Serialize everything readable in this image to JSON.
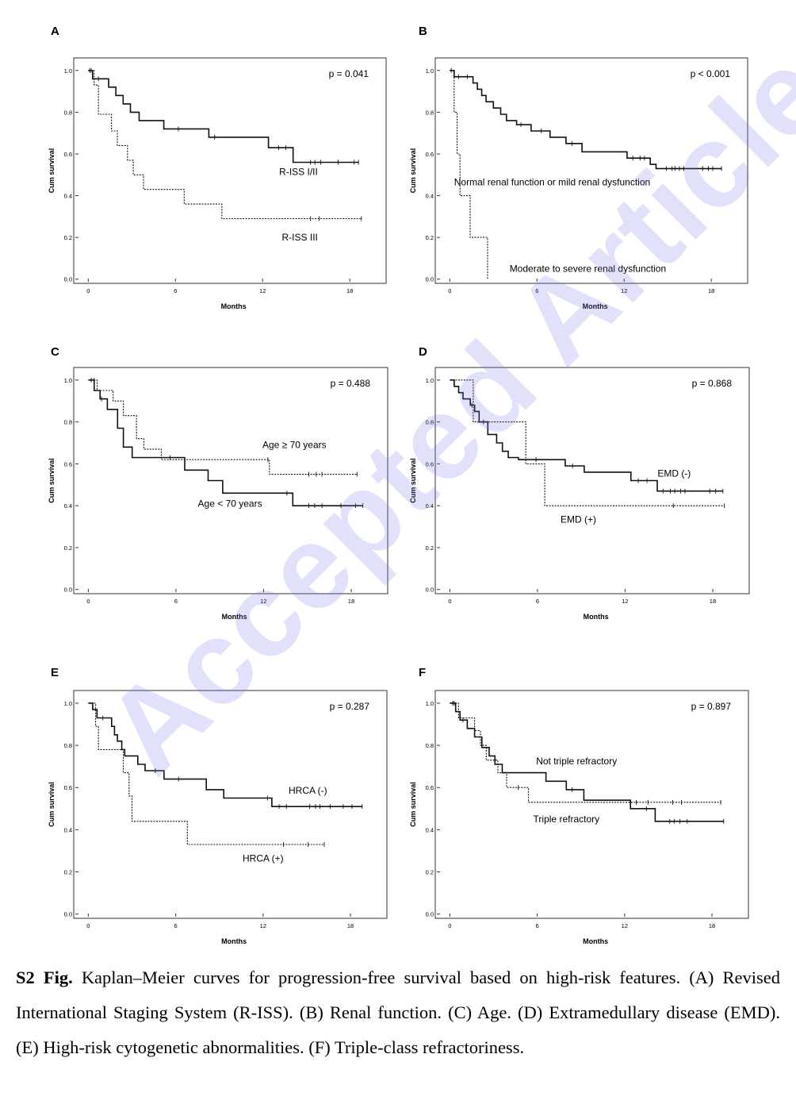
{
  "watermark": "Accepted Article",
  "caption": {
    "label": "S2 Fig.",
    "text": "Kaplan–Meier curves for progression-free survival based on high-risk features. (A) Revised International Staging System (R-ISS). (B) Renal function. (C) Age. (D) Extramedullary disease (EMD). (E) High-risk cytogenetic abnormalities. (F) Triple-class refractoriness."
  },
  "chart_data": [
    {
      "panel": "A",
      "type": "line",
      "xlabel": "Months",
      "ylabel": "Cum survival",
      "xlim": [
        -1,
        20.5
      ],
      "ylim": [
        -0.02,
        1.06
      ],
      "xticks": [
        0,
        6,
        12,
        18
      ],
      "yticks": [
        "0.0",
        "0.2",
        "0.4",
        "0.6",
        "0.8",
        "1.0"
      ],
      "pvalue": "p = 0.041",
      "series": [
        {
          "name": "R-ISS I/II",
          "style": "solid",
          "steps": [
            [
              0,
              1.0
            ],
            [
              0.3,
              0.96
            ],
            [
              1.4,
              0.92
            ],
            [
              1.9,
              0.88
            ],
            [
              2.4,
              0.84
            ],
            [
              2.9,
              0.8
            ],
            [
              3.5,
              0.76
            ],
            [
              5.2,
              0.72
            ],
            [
              8.3,
              0.68
            ],
            [
              12.4,
              0.63
            ],
            [
              14.1,
              0.56
            ],
            [
              18.6,
              0.56
            ]
          ],
          "censor": [
            0.1,
            0.7,
            6.2,
            8.7,
            13.1,
            13.6,
            15.3,
            15.6,
            16.0,
            17.2,
            18.3,
            18.6
          ]
        },
        {
          "name": "R-ISS III",
          "style": "dashed",
          "steps": [
            [
              0,
              1.0
            ],
            [
              0.4,
              0.93
            ],
            [
              0.7,
              0.79
            ],
            [
              1.6,
              0.71
            ],
            [
              2.0,
              0.64
            ],
            [
              2.7,
              0.57
            ],
            [
              3.1,
              0.5
            ],
            [
              3.8,
              0.43
            ],
            [
              6.6,
              0.36
            ],
            [
              9.2,
              0.29
            ],
            [
              18.8,
              0.29
            ]
          ],
          "censor": [
            0.2,
            15.3,
            15.9,
            18.8
          ]
        }
      ],
      "labels": [
        {
          "text": "R-ISS I/II",
          "x": 15.8,
          "y": 0.515
        },
        {
          "text": "R-ISS III",
          "x": 15.8,
          "y": 0.2
        }
      ]
    },
    {
      "panel": "B",
      "type": "line",
      "xlabel": "Months",
      "ylabel": "Cum survival",
      "xlim": [
        -1,
        20.5
      ],
      "ylim": [
        -0.02,
        1.06
      ],
      "xticks": [
        0,
        6,
        12,
        18
      ],
      "yticks": [
        "0.0",
        "0.2",
        "0.4",
        "0.6",
        "0.8",
        "1.0"
      ],
      "pvalue": "p < 0.001",
      "series": [
        {
          "name": "Normal renal function or mild renal dysfunction",
          "style": "solid",
          "steps": [
            [
              0,
              1.0
            ],
            [
              0.3,
              0.97
            ],
            [
              1.6,
              0.94
            ],
            [
              1.9,
              0.91
            ],
            [
              2.2,
              0.88
            ],
            [
              2.5,
              0.85
            ],
            [
              3.0,
              0.82
            ],
            [
              3.5,
              0.79
            ],
            [
              3.9,
              0.76
            ],
            [
              4.6,
              0.74
            ],
            [
              5.6,
              0.71
            ],
            [
              6.9,
              0.68
            ],
            [
              8.0,
              0.65
            ],
            [
              9.1,
              0.61
            ],
            [
              12.2,
              0.58
            ],
            [
              13.8,
              0.55
            ],
            [
              14.2,
              0.53
            ],
            [
              18.7,
              0.53
            ]
          ],
          "censor": [
            0.1,
            0.6,
            1.2,
            4.9,
            6.3,
            8.4,
            12.6,
            13.1,
            13.4,
            14.9,
            15.3,
            15.5,
            15.8,
            16.1,
            17.4,
            17.8,
            18.1,
            18.7
          ]
        },
        {
          "name": "Moderate to severe renal dysfunction",
          "style": "dashed",
          "steps": [
            [
              0,
              1.0
            ],
            [
              0.3,
              0.8
            ],
            [
              0.5,
              0.6
            ],
            [
              0.7,
              0.4
            ],
            [
              1.4,
              0.2
            ],
            [
              2.6,
              0.0
            ]
          ],
          "censor": []
        }
      ],
      "labels": [
        {
          "text": "Normal renal function or mild renal dysfunction",
          "x": 13.8,
          "y": 0.465
        },
        {
          "text": "Moderate to severe renal dysfunction",
          "x": 9.5,
          "y": 0.05
        }
      ]
    },
    {
      "panel": "C",
      "type": "line",
      "xlabel": "Months",
      "ylabel": "Cum survival",
      "xlim": [
        -1,
        20.5
      ],
      "ylim": [
        -0.02,
        1.06
      ],
      "xticks": [
        0,
        6,
        12,
        18
      ],
      "yticks": [
        "0.0",
        "0.2",
        "0.4",
        "0.6",
        "0.8",
        "1.0"
      ],
      "pvalue": "p = 0.488",
      "series": [
        {
          "name": "Age < 70 years",
          "style": "solid",
          "steps": [
            [
              0,
              1.0
            ],
            [
              0.4,
              0.95
            ],
            [
              0.8,
              0.91
            ],
            [
              1.3,
              0.86
            ],
            [
              2.0,
              0.77
            ],
            [
              2.4,
              0.68
            ],
            [
              3.0,
              0.63
            ],
            [
              6.6,
              0.57
            ],
            [
              8.2,
              0.52
            ],
            [
              9.2,
              0.46
            ],
            [
              14.0,
              0.4
            ],
            [
              18.8,
              0.4
            ]
          ],
          "censor": [
            0.2,
            0.9,
            5.6,
            13.6,
            15.1,
            15.5,
            16.0,
            17.3,
            18.3,
            18.8
          ]
        },
        {
          "name": "Age ≥ 70 years",
          "style": "dashed",
          "steps": [
            [
              0,
              1.0
            ],
            [
              0.6,
              0.95
            ],
            [
              1.7,
              0.9
            ],
            [
              2.4,
              0.83
            ],
            [
              3.3,
              0.72
            ],
            [
              3.8,
              0.67
            ],
            [
              5.0,
              0.62
            ],
            [
              12.4,
              0.55
            ],
            [
              18.4,
              0.55
            ]
          ],
          "censor": [
            0.4,
            12.3,
            15.1,
            15.6,
            16.0,
            18.4
          ]
        }
      ],
      "labels": [
        {
          "text": "Age ≥ 70 years",
          "x": 16.3,
          "y": 0.69
        },
        {
          "text": "Age < 70 years",
          "x": 9.7,
          "y": 0.41
        }
      ]
    },
    {
      "panel": "D",
      "type": "line",
      "xlabel": "Months",
      "ylabel": "Cum survival",
      "xlim": [
        -1,
        20.5
      ],
      "ylim": [
        -0.02,
        1.06
      ],
      "xticks": [
        0,
        6,
        12,
        18
      ],
      "yticks": [
        "0.0",
        "0.2",
        "0.4",
        "0.6",
        "0.8",
        "1.0"
      ],
      "pvalue": "p = 0.868",
      "series": [
        {
          "name": "EMD (-)",
          "style": "solid",
          "steps": [
            [
              0,
              1.0
            ],
            [
              0.3,
              0.97
            ],
            [
              0.6,
              0.94
            ],
            [
              0.9,
              0.91
            ],
            [
              1.4,
              0.88
            ],
            [
              1.7,
              0.85
            ],
            [
              2.0,
              0.8
            ],
            [
              2.6,
              0.74
            ],
            [
              3.2,
              0.7
            ],
            [
              3.6,
              0.66
            ],
            [
              4.0,
              0.63
            ],
            [
              4.7,
              0.62
            ],
            [
              7.9,
              0.59
            ],
            [
              9.2,
              0.56
            ],
            [
              12.4,
              0.52
            ],
            [
              14.2,
              0.47
            ],
            [
              18.7,
              0.47
            ]
          ],
          "censor": [
            1.5,
            2.3,
            5.9,
            8.4,
            12.9,
            13.5,
            14.6,
            15.1,
            15.4,
            15.8,
            16.1,
            17.8,
            18.2,
            18.7
          ]
        },
        {
          "name": "EMD (+)",
          "style": "dashed",
          "steps": [
            [
              0,
              1.0
            ],
            [
              1.6,
              0.8
            ],
            [
              5.2,
              0.6
            ],
            [
              6.5,
              0.4
            ],
            [
              18.8,
              0.4
            ]
          ],
          "censor": [
            15.3,
            18.8
          ]
        }
      ],
      "labels": [
        {
          "text": "EMD (-)",
          "x": 16.5,
          "y": 0.555
        },
        {
          "text": "EMD (+)",
          "x": 8.8,
          "y": 0.335
        }
      ]
    },
    {
      "panel": "E",
      "type": "line",
      "xlabel": "Months",
      "ylabel": "Cum survival",
      "xlim": [
        -1,
        20.5
      ],
      "ylim": [
        -0.02,
        1.06
      ],
      "xticks": [
        0,
        6,
        12,
        18
      ],
      "yticks": [
        "0.0",
        "0.2",
        "0.4",
        "0.6",
        "0.8",
        "1.0"
      ],
      "pvalue": "p = 0.287",
      "series": [
        {
          "name": "HRCA (-)",
          "style": "solid",
          "steps": [
            [
              0,
              1.0
            ],
            [
              0.3,
              0.97
            ],
            [
              0.6,
              0.93
            ],
            [
              1.6,
              0.89
            ],
            [
              1.8,
              0.85
            ],
            [
              2.0,
              0.82
            ],
            [
              2.3,
              0.78
            ],
            [
              2.5,
              0.75
            ],
            [
              3.4,
              0.71
            ],
            [
              3.9,
              0.68
            ],
            [
              5.2,
              0.64
            ],
            [
              8.1,
              0.59
            ],
            [
              9.3,
              0.55
            ],
            [
              12.6,
              0.51
            ],
            [
              18.8,
              0.51
            ]
          ],
          "censor": [
            1.0,
            4.6,
            6.2,
            12.3,
            13.1,
            13.6,
            15.2,
            15.6,
            15.9,
            16.6,
            17.5,
            18.1,
            18.8
          ]
        },
        {
          "name": "HRCA (+)",
          "style": "dashed",
          "steps": [
            [
              0,
              1.0
            ],
            [
              0.5,
              0.89
            ],
            [
              0.7,
              0.78
            ],
            [
              2.4,
              0.67
            ],
            [
              2.8,
              0.56
            ],
            [
              3.0,
              0.44
            ],
            [
              6.8,
              0.33
            ],
            [
              16.2,
              0.33
            ]
          ],
          "censor": [
            13.4,
            15.1,
            16.2
          ]
        }
      ],
      "labels": [
        {
          "text": "HRCA (-)",
          "x": 16.4,
          "y": 0.585
        },
        {
          "text": "HRCA (+)",
          "x": 12.0,
          "y": 0.265
        }
      ]
    },
    {
      "panel": "F",
      "type": "line",
      "xlabel": "Months",
      "ylabel": "Cum survival",
      "xlim": [
        -1,
        20.5
      ],
      "ylim": [
        -0.02,
        1.06
      ],
      "xticks": [
        0,
        6,
        12,
        18
      ],
      "yticks": [
        "0.0",
        "0.2",
        "0.4",
        "0.6",
        "0.8",
        "1.0"
      ],
      "pvalue": "p = 0.897",
      "series": [
        {
          "name": "Not triple refractory",
          "style": "solid",
          "steps": [
            [
              0,
              1.0
            ],
            [
              0.4,
              0.96
            ],
            [
              0.7,
              0.92
            ],
            [
              1.2,
              0.88
            ],
            [
              1.7,
              0.84
            ],
            [
              2.2,
              0.79
            ],
            [
              2.7,
              0.75
            ],
            [
              3.1,
              0.71
            ],
            [
              3.6,
              0.67
            ],
            [
              6.6,
              0.63
            ],
            [
              8.0,
              0.59
            ],
            [
              9.2,
              0.54
            ],
            [
              12.4,
              0.5
            ],
            [
              14.1,
              0.44
            ],
            [
              18.8,
              0.44
            ]
          ],
          "censor": [
            0.2,
            0.9,
            8.4,
            13.5,
            15.1,
            15.4,
            15.8,
            16.3,
            18.8
          ]
        },
        {
          "name": "Triple refractory",
          "style": "dashed",
          "steps": [
            [
              0,
              1.0
            ],
            [
              0.6,
              0.93
            ],
            [
              1.7,
              0.87
            ],
            [
              2.1,
              0.8
            ],
            [
              2.5,
              0.73
            ],
            [
              3.3,
              0.67
            ],
            [
              3.9,
              0.6
            ],
            [
              5.4,
              0.53
            ],
            [
              18.6,
              0.53
            ]
          ],
          "censor": [
            0.3,
            4.7,
            12.8,
            13.6,
            15.3,
            15.9,
            18.6
          ]
        }
      ],
      "labels": [
        {
          "text": "Not triple refractory",
          "x": 8.7,
          "y": 0.725
        },
        {
          "text": "Triple refractory",
          "x": 8.0,
          "y": 0.45
        }
      ]
    }
  ]
}
